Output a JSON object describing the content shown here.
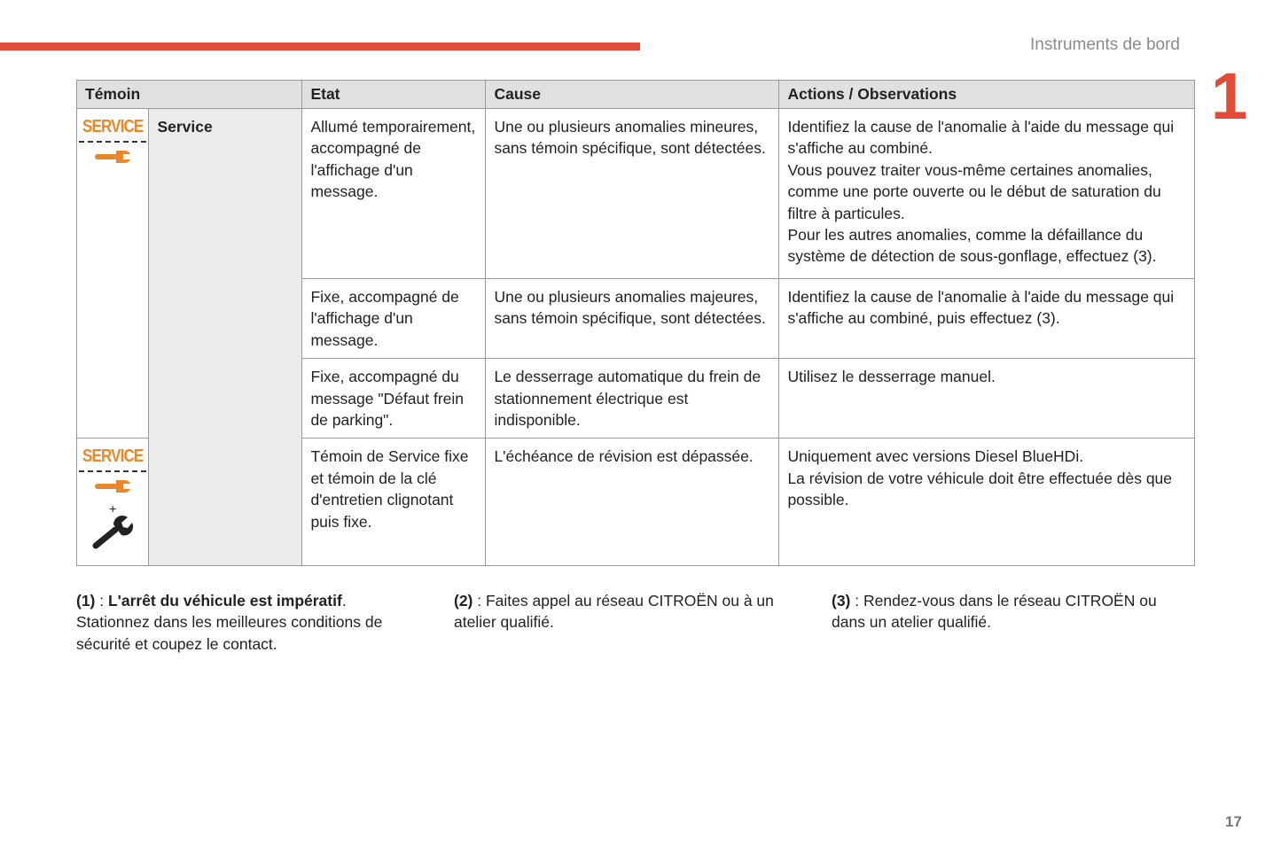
{
  "header": {
    "section_title": "Instruments de bord",
    "chapter_number": "1",
    "accent_color": "#e24c36"
  },
  "table": {
    "columns": [
      "Témoin",
      "Etat",
      "Cause",
      "Actions / Observations"
    ],
    "service_label": "Service",
    "icon_text": "SERVICE",
    "icon_color": "#e8882a",
    "plus": "+",
    "rows": [
      {
        "etat": "Allumé temporairement, accompagné de l'affichage d'un message.",
        "cause": "Une ou plusieurs anomalies mineures, sans témoin spécifique, sont détectées.",
        "actions": [
          "Identifiez la cause de l'anomalie à l'aide du message qui s'affiche au combiné.",
          "Vous pouvez traiter vous-même certaines anomalies, comme une porte ouverte ou le début de saturation du filtre à particules.",
          "Pour les autres anomalies, comme la défaillance du système de détection de sous-gonflage, effectuez (3)."
        ]
      },
      {
        "etat": "Fixe, accompagné de l'affichage d'un message.",
        "cause": "Une ou plusieurs anomalies majeures, sans témoin spécifique, sont détectées.",
        "actions": [
          "Identifiez la cause de l'anomalie à l'aide du message qui s'affiche au combiné, puis effectuez (3)."
        ]
      },
      {
        "etat": "Fixe, accompagné du message \"Défaut frein de parking\".",
        "cause": "Le desserrage automatique du frein de stationnement électrique est indisponible.",
        "actions": [
          "Utilisez le desserrage manuel."
        ]
      },
      {
        "etat": "Témoin de Service fixe et témoin de la clé d'entretien clignotant puis fixe.",
        "cause": "L'échéance de révision est dépassée.",
        "actions": [
          "Uniquement avec versions Diesel BlueHDi.",
          "La révision de votre véhicule doit être effectuée dès que possible."
        ]
      }
    ]
  },
  "footnotes": [
    {
      "ref": "(1)",
      "sep": " : ",
      "bold": "L'arrêt du véhicule est impératif",
      "text": ". Stationnez dans les meilleures conditions de sécurité et coupez le contact."
    },
    {
      "ref": "(2)",
      "sep": " : ",
      "bold": "",
      "text": "Faites appel au réseau CITROËN ou à un atelier qualifié."
    },
    {
      "ref": "(3)",
      "sep": " : ",
      "bold": "",
      "text": "Rendez-vous dans le réseau CITROËN ou dans un atelier qualifié."
    }
  ],
  "page_number": "17"
}
